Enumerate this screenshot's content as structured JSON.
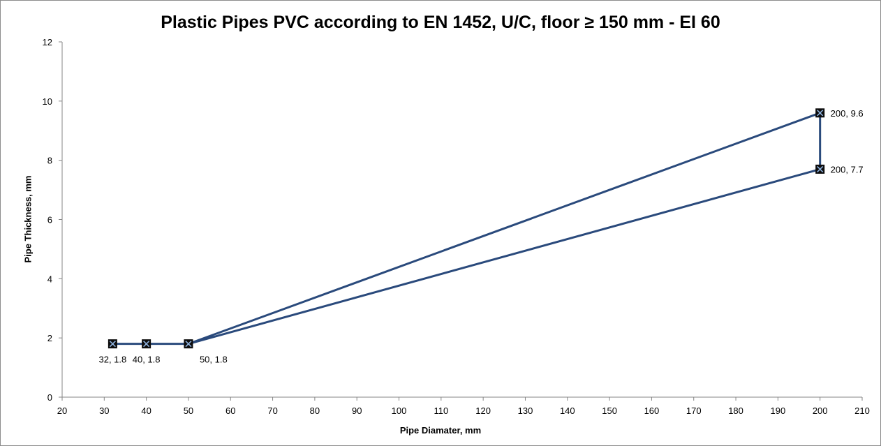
{
  "chart_data": {
    "type": "line",
    "title": "Plastic Pipes PVC according to EN 1452, U/C, floor ≥ 150 mm - EI 60",
    "xlabel": "Pipe Diamater, mm",
    "ylabel": "Pipe Thickness, mm",
    "xlim": [
      20,
      210
    ],
    "ylim": [
      0,
      12
    ],
    "x_ticks": [
      20,
      30,
      40,
      50,
      60,
      70,
      80,
      90,
      100,
      110,
      120,
      130,
      140,
      150,
      160,
      170,
      180,
      190,
      200,
      210
    ],
    "y_ticks": [
      0,
      2,
      4,
      6,
      8,
      10,
      12
    ],
    "grid": false,
    "legend": "none",
    "series_color": "#2a4a7c",
    "series": [
      {
        "points": [
          {
            "x": 32,
            "y": 1.8,
            "label": "32, 1.8",
            "label_pos": "below"
          },
          {
            "x": 40,
            "y": 1.8,
            "label": "40, 1.8",
            "label_pos": "below"
          },
          {
            "x": 50,
            "y": 1.8,
            "label": "50, 1.8",
            "label_pos": "below-right"
          },
          {
            "x": 200,
            "y": 9.6,
            "label": "200, 9.6",
            "label_pos": "right"
          },
          {
            "x": 200,
            "y": 7.7,
            "label": "200, 7.7",
            "label_pos": "right"
          },
          {
            "x": 50,
            "y": 1.8,
            "label": "",
            "label_pos": "none"
          }
        ]
      }
    ]
  }
}
